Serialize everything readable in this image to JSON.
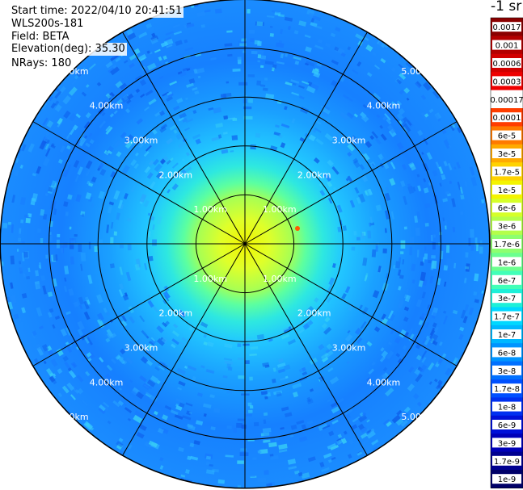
{
  "info": {
    "start_time": "Start time: 2022/04/10 20:41:51",
    "instrument": "WLS200s-181",
    "field": "Field: BETA",
    "elevation": "Elevation(deg): 35.30",
    "nrays": "NRays: 180"
  },
  "colorbar": {
    "title": "-1 sr",
    "labels": [
      "0.0017",
      "0.001",
      "0.0006",
      "0.0003",
      "0.00017",
      "0.0001",
      "6e-5",
      "3e-5",
      "1.7e-5",
      "1e-5",
      "6e-6",
      "3e-6",
      "1.7e-6",
      "1e-6",
      "6e-7",
      "3e-7",
      "1.7e-7",
      "1e-7",
      "6e-8",
      "3e-8",
      "1.7e-8",
      "1e-8",
      "6e-9",
      "3e-9",
      "1.7e-9",
      "1e-9"
    ],
    "colors": [
      "#8a0000",
      "#b30000",
      "#d10000",
      "#ee0000",
      "#ffffff",
      "#ff3d00",
      "#ff7a00",
      "#ffaa00",
      "#ffd200",
      "#f4f400",
      "#d6ff29",
      "#b4ff4a",
      "#8dff6f",
      "#6bff8f",
      "#42ffb8",
      "#1ef0d8",
      "#00d8ff",
      "#00b8ff",
      "#0094ff",
      "#0070ff",
      "#0050ff",
      "#0030f0",
      "#0010d8",
      "#0000b8",
      "#000090",
      "#000068"
    ]
  },
  "chart_data": {
    "type": "heatmap",
    "projection": "polar (PPI)",
    "field": "BETA",
    "rays": 180,
    "range_rings_km": [
      1,
      2,
      3,
      4,
      5
    ],
    "ring_labels": [
      "1.00km",
      "2.00km",
      "3.00km",
      "4.00km",
      "5.00km"
    ],
    "max_range_km": 5,
    "radial_lines_deg": [
      0,
      30,
      60,
      90,
      120,
      150,
      180,
      210,
      240,
      270,
      300,
      330
    ],
    "profile": [
      {
        "range_km": 0.0,
        "value": "1e-5"
      },
      {
        "range_km": 0.5,
        "value": "1e-5"
      },
      {
        "range_km": 1.0,
        "value": "6e-6"
      },
      {
        "range_km": 1.3,
        "value": "1.7e-6"
      },
      {
        "range_km": 1.6,
        "value": "6e-7"
      },
      {
        "range_km": 2.0,
        "value": "3e-7"
      },
      {
        "range_km": 2.5,
        "value": "1.7e-7"
      },
      {
        "range_km": 3.0,
        "value": "6e-8"
      },
      {
        "range_km": 4.0,
        "value": "3e-8"
      },
      {
        "range_km": 5.0,
        "value": "1.7e-8"
      }
    ]
  }
}
